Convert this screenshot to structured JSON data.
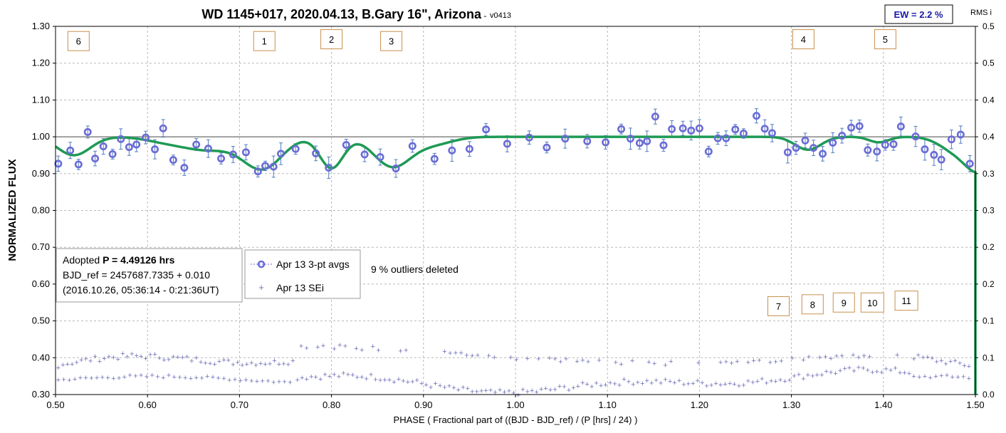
{
  "chart_data": {
    "type": "scatter",
    "title": "WD 1145+017, 2020.04.13, B.Gary 16\", Arizona",
    "title_suffix": " - ",
    "version": "v0413",
    "ew_label": "EW = 2.2 %",
    "right_axis_label": "RMS i",
    "xlabel": "PHASE ( Fractional part of ((BJD - BJD_ref) / (P [hrs] / 24) )",
    "ylabel": "NORMALIZED FLUX",
    "xlim": [
      0.5,
      1.5
    ],
    "ylim": [
      0.3,
      1.3
    ],
    "y2lim": [
      0.0,
      0.5
    ],
    "x_ticks": [
      "0.50",
      "0.60",
      "0.70",
      "0.80",
      "0.90",
      "1.00",
      "1.10",
      "1.20",
      "1.30",
      "1.40",
      "1.50"
    ],
    "y_ticks": [
      "0.30",
      "0.40",
      "0.50",
      "0.60",
      "0.70",
      "0.80",
      "0.90",
      "1.00",
      "1.10",
      "1.20",
      "1.30"
    ],
    "y2_ticks": [
      "0.0",
      "0.1",
      "0.1",
      "0.2",
      "0.2",
      "0.3",
      "0.3",
      "0.4",
      "0.4",
      "0.5",
      "0.5"
    ],
    "grid": true,
    "reference_line_y": 1.0,
    "colors": {
      "points": "#6b6bd6",
      "model": "#1e9a55",
      "sei": "#7070b8",
      "annotation_border": "#c8904c",
      "ew_text": "#1a1aa8"
    },
    "series": [
      {
        "name": "Apr 13 3-pt avgs",
        "x": [
          0.503,
          0.516,
          0.525,
          0.535,
          0.543,
          0.552,
          0.562,
          0.571,
          0.58,
          0.588,
          0.598,
          0.608,
          0.617,
          0.628,
          0.64,
          0.653,
          0.666,
          0.68,
          0.693,
          0.707,
          0.72,
          0.728,
          0.737,
          0.745,
          0.761,
          0.783,
          0.797,
          0.816,
          0.836,
          0.853,
          0.87,
          0.888,
          0.912,
          0.931,
          0.95,
          0.968,
          0.991,
          1.015,
          1.034,
          1.054,
          1.078,
          1.098,
          1.115,
          1.125,
          1.135,
          1.143,
          1.152,
          1.161,
          1.17,
          1.182,
          1.191,
          1.2,
          1.21,
          1.22,
          1.229,
          1.239,
          1.248,
          1.262,
          1.271,
          1.279,
          1.296,
          1.305,
          1.315,
          1.324,
          1.334,
          1.345,
          1.355,
          1.365,
          1.374,
          1.383,
          1.393,
          1.402,
          1.411,
          1.419,
          1.435,
          1.445,
          1.455,
          1.463,
          1.474,
          1.484,
          1.494
        ],
        "values": [
          0.927,
          0.963,
          0.925,
          1.013,
          0.941,
          0.974,
          0.953,
          0.994,
          0.972,
          0.979,
          0.998,
          0.966,
          1.023,
          0.937,
          0.916,
          0.979,
          0.968,
          0.941,
          0.952,
          0.958,
          0.906,
          0.921,
          0.919,
          0.954,
          0.967,
          0.955,
          0.916,
          0.978,
          0.952,
          0.945,
          0.914,
          0.975,
          0.94,
          0.963,
          0.967,
          1.02,
          0.981,
          0.998,
          0.971,
          0.995,
          0.988,
          0.985,
          1.021,
          0.995,
          0.983,
          0.988,
          1.055,
          0.977,
          1.021,
          1.023,
          1.017,
          1.023,
          0.96,
          0.996,
          0.996,
          1.02,
          1.009,
          1.057,
          1.022,
          1.01,
          0.958,
          0.97,
          0.99,
          0.97,
          0.954,
          0.984,
          1.003,
          1.025,
          1.029,
          0.964,
          0.96,
          0.978,
          0.98,
          1.028,
          1.001,
          0.966,
          0.951,
          0.938,
          0.993,
          1.006,
          0.927
        ]
      },
      {
        "name": "Apr 13 SEi",
        "axis": "right"
      }
    ],
    "model_curve": {
      "baseline": 1.0,
      "dips": [
        {
          "center": 0.52,
          "depth": 0.05,
          "width": 0.025
        },
        {
          "center": 0.617,
          "depth": 0.01,
          "width": 0.03
        },
        {
          "center": 0.665,
          "depth": 0.035,
          "width": 0.04
        },
        {
          "center": 0.725,
          "depth": 0.085,
          "width": 0.03
        },
        {
          "center": 0.8,
          "depth": 0.085,
          "width": 0.018
        },
        {
          "center": 0.866,
          "depth": 0.08,
          "width": 0.028
        },
        {
          "center": 0.91,
          "depth": 0.02,
          "width": 0.03
        },
        {
          "center": 1.318,
          "depth": 0.035,
          "width": 0.02
        },
        {
          "center": 1.395,
          "depth": 0.015,
          "width": 0.015
        },
        {
          "center": 1.48,
          "depth": 0.04,
          "width": 0.025
        },
        {
          "center": 1.505,
          "depth": 0.08,
          "width": 0.02
        }
      ]
    },
    "legend": {
      "placement": "middle-left",
      "entries": [
        "Apr 13 3-pt avgs",
        "Apr 13 SEi"
      ]
    },
    "info_box": {
      "line1_prefix": "Adopted ",
      "line1_bold": "P = 4.49126 hrs",
      "line2": "BJD_ref = 2457687.7335 + 0.010",
      "line3": "(2016.10.26, 05:36:14 - 0:21:36UT)"
    },
    "outliers_note": "9 % outliers deleted",
    "dip_labels": [
      {
        "text": "6",
        "x": 0.525,
        "y": 1.26
      },
      {
        "text": "1",
        "x": 0.727,
        "y": 1.26
      },
      {
        "text": "2",
        "x": 0.8,
        "y": 1.265
      },
      {
        "text": "3",
        "x": 0.865,
        "y": 1.26
      },
      {
        "text": "4",
        "x": 1.313,
        "y": 1.265
      },
      {
        "text": "5",
        "x": 1.402,
        "y": 1.265
      },
      {
        "text": "7",
        "x": 1.286,
        "y": 0.54
      },
      {
        "text": "8",
        "x": 1.323,
        "y": 0.545
      },
      {
        "text": "9",
        "x": 1.357,
        "y": 0.55
      },
      {
        "text": "10",
        "x": 1.388,
        "y": 0.55
      },
      {
        "text": "11",
        "x": 1.425,
        "y": 0.555
      }
    ]
  }
}
